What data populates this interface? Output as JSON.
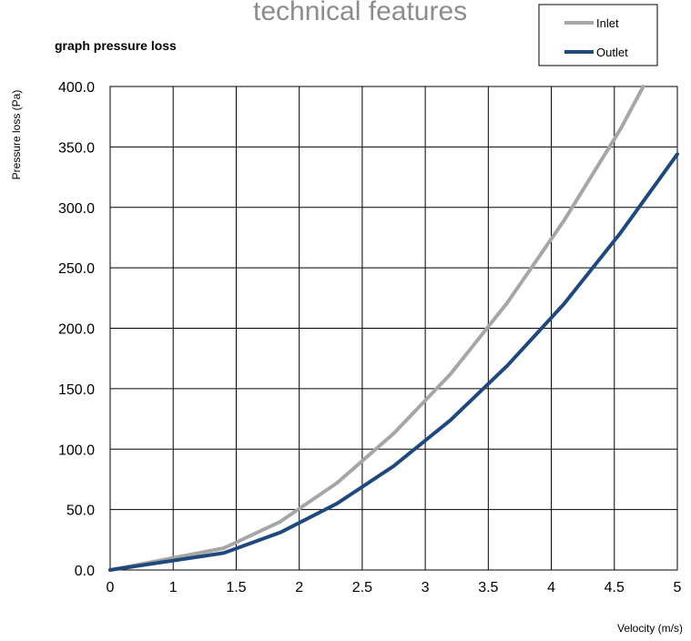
{
  "page": {
    "heading": "technical features"
  },
  "chart_data": {
    "type": "line",
    "title": "graph pressure  loss",
    "xlabel": "Velocity (m/s)",
    "ylabel": "Pressure loss (Pa)",
    "xlim": [
      0,
      5
    ],
    "ylim": [
      0,
      400
    ],
    "x_ticks": [
      "0",
      "1",
      "1.5",
      "2",
      "2.5",
      "3",
      "3.5",
      "4",
      "4.5",
      "5"
    ],
    "y_ticks": [
      "0.0",
      "50.0",
      "100.0",
      "150.0",
      "200.0",
      "250.0",
      "300.0",
      "350.0",
      "400.0"
    ],
    "grid": true,
    "legend": "top-right",
    "series": [
      {
        "name": "Inlet",
        "color": "#a6a6a6",
        "points": [
          [
            0,
            0
          ],
          [
            1,
            18
          ],
          [
            1.5,
            40
          ],
          [
            2,
            72
          ],
          [
            2.5,
            113
          ],
          [
            3,
            162
          ],
          [
            3.5,
            221
          ],
          [
            4,
            289
          ],
          [
            4.5,
            365
          ],
          [
            4.7,
            400
          ]
        ]
      },
      {
        "name": "Outlet",
        "color": "#1f497d",
        "points": [
          [
            0,
            0
          ],
          [
            1,
            14
          ],
          [
            1.5,
            31
          ],
          [
            2,
            55
          ],
          [
            2.5,
            86
          ],
          [
            3,
            124
          ],
          [
            3.5,
            169
          ],
          [
            4,
            220
          ],
          [
            4.5,
            279
          ],
          [
            5,
            344
          ]
        ]
      }
    ]
  }
}
